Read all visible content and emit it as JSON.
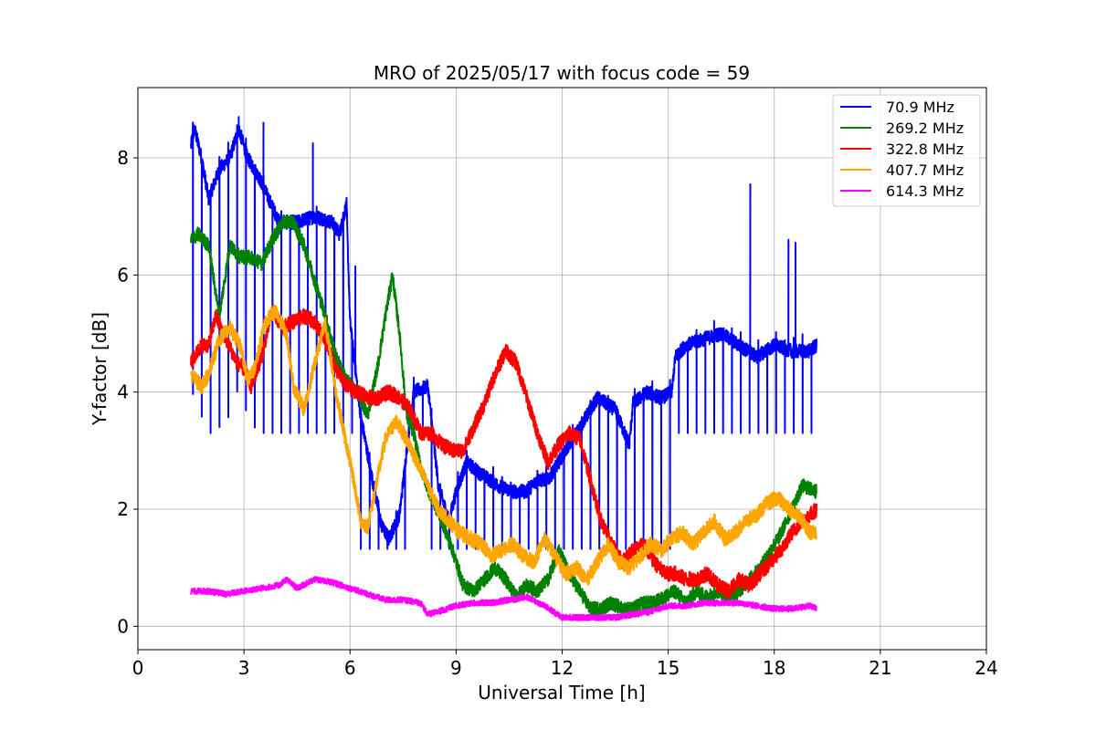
{
  "chart_data": {
    "type": "line",
    "title": "MRO of 2025/05/17 with focus code = 59",
    "xlabel": "Universal Time [h]",
    "ylabel": "Y-factor [dB]",
    "xlim": [
      0,
      24
    ],
    "ylim": [
      -0.4,
      9.2
    ],
    "xticks": [
      0,
      3,
      6,
      9,
      12,
      15,
      18,
      21,
      24
    ],
    "yticks": [
      0,
      2,
      4,
      6,
      8
    ],
    "grid": true,
    "legend_position": "top-right",
    "series": [
      {
        "name": " 70.9 MHz",
        "color": "#0000ff",
        "noise": 0.12,
        "dip_interval_h": 0.25,
        "dip_depth": 4.4,
        "dip_floor": 2.2,
        "spikes": [
          [
            17.32,
            7.55
          ],
          [
            18.4,
            6.6
          ],
          [
            18.6,
            6.55
          ],
          [
            19.2,
            5.5
          ],
          [
            2.85,
            8.7
          ],
          [
            3.55,
            8.6
          ],
          [
            4.95,
            8.25
          ],
          [
            6.15,
            6.15
          ]
        ],
        "x": [
          1.5,
          1.6,
          1.8,
          2.0,
          2.3,
          2.6,
          2.85,
          3.1,
          3.4,
          3.7,
          4.0,
          4.5,
          5.0,
          5.5,
          5.7,
          5.9,
          6.0,
          6.3,
          6.6,
          6.9,
          7.1,
          7.4,
          7.6,
          7.8,
          8.2,
          8.5,
          8.8,
          9.0,
          9.3,
          9.7,
          10.2,
          10.6,
          11.0,
          11.3,
          11.6,
          11.9,
          12.2,
          12.6,
          13.0,
          13.5,
          13.9,
          14.0,
          14.4,
          14.8,
          15.1,
          15.2,
          15.5,
          16.0,
          16.5,
          17.0,
          17.5,
          18.0,
          18.5,
          19.0,
          19.2
        ],
        "y": [
          8.2,
          8.5,
          8.0,
          7.3,
          7.8,
          8.0,
          8.5,
          8.0,
          7.7,
          7.3,
          6.9,
          6.9,
          7.0,
          6.9,
          6.7,
          7.2,
          5.2,
          3.6,
          2.6,
          1.7,
          1.5,
          1.9,
          3.0,
          4.0,
          4.1,
          2.4,
          1.8,
          2.3,
          2.8,
          2.6,
          2.4,
          2.3,
          2.3,
          2.5,
          2.5,
          2.8,
          3.1,
          3.5,
          3.9,
          3.7,
          3.1,
          3.8,
          4.0,
          3.9,
          4.0,
          4.6,
          4.8,
          4.9,
          5.0,
          4.8,
          4.6,
          4.8,
          4.7,
          4.7,
          4.8
        ]
      },
      {
        "name": "269.2 MHz",
        "color": "#008000",
        "noise": 0.12,
        "x": [
          1.5,
          1.7,
          2.0,
          2.3,
          2.6,
          2.9,
          3.2,
          3.5,
          3.8,
          4.1,
          4.4,
          4.7,
          5.0,
          5.3,
          5.6,
          5.9,
          6.2,
          6.5,
          6.8,
          7.0,
          7.2,
          7.4,
          7.6,
          7.8,
          8.0,
          8.3,
          8.6,
          8.9,
          9.2,
          9.5,
          9.8,
          10.1,
          10.4,
          10.7,
          11.0,
          11.3,
          11.6,
          11.9,
          12.2,
          12.5,
          12.8,
          13.1,
          13.4,
          13.7,
          14.0,
          14.3,
          14.6,
          14.9,
          15.2,
          15.5,
          15.8,
          16.1,
          16.4,
          16.7,
          17.0,
          17.3,
          17.6,
          17.9,
          18.2,
          18.5,
          18.8,
          19.2
        ],
        "y": [
          6.6,
          6.7,
          6.5,
          5.3,
          6.5,
          6.3,
          6.3,
          6.2,
          6.6,
          6.9,
          6.9,
          6.5,
          5.9,
          5.3,
          4.6,
          4.2,
          4.0,
          3.6,
          4.5,
          5.3,
          6.0,
          5.0,
          3.6,
          3.3,
          2.7,
          2.2,
          1.8,
          1.3,
          0.7,
          0.6,
          0.8,
          1.0,
          0.8,
          0.5,
          0.7,
          0.6,
          0.8,
          1.3,
          0.9,
          0.6,
          0.3,
          0.3,
          0.4,
          0.3,
          0.3,
          0.4,
          0.4,
          0.5,
          0.6,
          0.4,
          0.6,
          0.5,
          0.6,
          0.5,
          0.6,
          0.8,
          1.0,
          1.3,
          1.6,
          2.0,
          2.4,
          2.3
        ]
      },
      {
        "name": "322.8 MHz",
        "color": "#ff0000",
        "noise": 0.13,
        "x": [
          1.5,
          1.8,
          2.0,
          2.2,
          2.5,
          2.8,
          3.0,
          3.2,
          3.5,
          3.8,
          4.1,
          4.4,
          4.7,
          5.0,
          5.3,
          5.6,
          5.9,
          6.2,
          6.5,
          6.8,
          7.1,
          7.4,
          7.7,
          8.0,
          8.3,
          8.6,
          8.9,
          9.2,
          9.5,
          9.8,
          10.1,
          10.4,
          10.7,
          11.0,
          11.3,
          11.6,
          11.9,
          12.2,
          12.5,
          12.8,
          13.1,
          13.4,
          13.7,
          14.0,
          14.3,
          14.6,
          14.9,
          15.2,
          15.5,
          15.8,
          16.1,
          16.4,
          16.7,
          17.0,
          17.3,
          17.6,
          17.9,
          18.2,
          18.5,
          18.8,
          19.2
        ],
        "y": [
          4.5,
          4.8,
          4.8,
          5.3,
          4.9,
          4.5,
          4.4,
          4.1,
          4.6,
          5.4,
          5.1,
          5.2,
          5.3,
          5.2,
          4.9,
          4.4,
          4.1,
          4.0,
          3.9,
          3.9,
          4.0,
          3.9,
          3.7,
          3.3,
          3.3,
          3.1,
          3.0,
          3.0,
          3.4,
          3.8,
          4.3,
          4.7,
          4.5,
          3.9,
          3.3,
          2.8,
          3.1,
          3.3,
          3.2,
          2.5,
          1.8,
          1.4,
          1.1,
          1.3,
          1.4,
          1.1,
          0.9,
          0.9,
          0.8,
          0.8,
          0.9,
          0.7,
          0.6,
          0.8,
          0.7,
          0.9,
          1.1,
          1.3,
          1.6,
          1.8,
          2.0
        ]
      },
      {
        "name": "407.7 MHz",
        "color": "#ffa500",
        "noise": 0.13,
        "x": [
          1.5,
          1.8,
          2.0,
          2.3,
          2.6,
          2.9,
          3.1,
          3.3,
          3.6,
          3.9,
          4.2,
          4.4,
          4.7,
          5.0,
          5.3,
          5.6,
          5.9,
          6.1,
          6.3,
          6.5,
          6.7,
          7.0,
          7.3,
          7.6,
          7.9,
          8.2,
          8.5,
          8.8,
          9.1,
          9.4,
          9.7,
          10.0,
          10.3,
          10.6,
          10.9,
          11.2,
          11.5,
          11.8,
          12.1,
          12.4,
          12.7,
          13.0,
          13.3,
          13.6,
          13.9,
          14.2,
          14.5,
          14.8,
          15.1,
          15.4,
          15.7,
          16.0,
          16.3,
          16.6,
          16.9,
          17.2,
          17.5,
          17.8,
          18.1,
          18.4,
          18.7,
          19.0,
          19.2
        ],
        "y": [
          4.3,
          4.1,
          4.3,
          4.9,
          5.1,
          4.8,
          4.2,
          4.4,
          5.2,
          5.4,
          5.0,
          4.1,
          3.7,
          4.5,
          5.2,
          4.0,
          3.1,
          2.5,
          1.8,
          1.7,
          2.3,
          3.2,
          3.5,
          3.2,
          2.8,
          2.4,
          2.0,
          1.8,
          1.6,
          1.5,
          1.4,
          1.2,
          1.3,
          1.4,
          1.2,
          1.1,
          1.5,
          1.2,
          0.9,
          1.0,
          0.8,
          1.1,
          1.4,
          1.1,
          1.0,
          1.2,
          1.4,
          1.3,
          1.5,
          1.6,
          1.4,
          1.6,
          1.8,
          1.5,
          1.6,
          1.8,
          1.9,
          2.1,
          2.2,
          2.0,
          1.9,
          1.6,
          1.6
        ]
      },
      {
        "name": "614.3 MHz",
        "color": "#ff00ff",
        "noise": 0.05,
        "x": [
          1.5,
          2.0,
          2.5,
          3.0,
          3.5,
          4.0,
          4.2,
          4.5,
          5.0,
          5.5,
          6.0,
          6.5,
          7.0,
          7.5,
          8.0,
          8.2,
          8.5,
          9.0,
          9.5,
          10.0,
          10.5,
          11.0,
          11.5,
          12.0,
          12.5,
          13.0,
          13.5,
          14.0,
          14.5,
          15.0,
          15.5,
          16.0,
          16.5,
          17.0,
          17.5,
          18.0,
          18.5,
          19.0,
          19.2
        ],
        "y": [
          0.6,
          0.6,
          0.55,
          0.6,
          0.65,
          0.7,
          0.8,
          0.65,
          0.8,
          0.75,
          0.65,
          0.55,
          0.45,
          0.45,
          0.4,
          0.2,
          0.25,
          0.35,
          0.4,
          0.4,
          0.45,
          0.5,
          0.35,
          0.15,
          0.15,
          0.15,
          0.15,
          0.2,
          0.25,
          0.35,
          0.35,
          0.4,
          0.4,
          0.4,
          0.35,
          0.3,
          0.3,
          0.35,
          0.3
        ]
      }
    ]
  }
}
